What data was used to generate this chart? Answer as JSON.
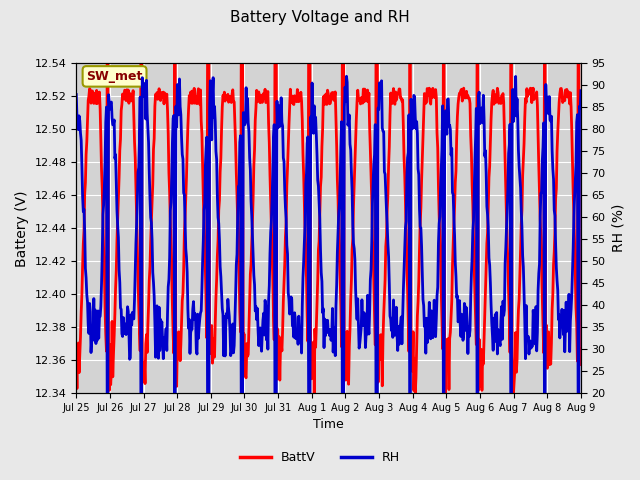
{
  "title": "Battery Voltage and RH",
  "xlabel": "Time",
  "ylabel_left": "Battery (V)",
  "ylabel_right": "RH (%)",
  "left_ylim": [
    12.34,
    12.54
  ],
  "right_ylim": [
    20,
    95
  ],
  "left_yticks": [
    12.34,
    12.36,
    12.38,
    12.4,
    12.42,
    12.44,
    12.46,
    12.48,
    12.5,
    12.52,
    12.54
  ],
  "right_yticks": [
    20,
    25,
    30,
    35,
    40,
    45,
    50,
    55,
    60,
    65,
    70,
    75,
    80,
    85,
    90,
    95
  ],
  "xtick_positions": [
    0,
    1,
    2,
    3,
    4,
    5,
    6,
    7,
    8,
    9,
    10,
    11,
    12,
    13,
    14,
    15
  ],
  "xtick_labels": [
    "Jul 25",
    "Jul 26",
    "Jul 27",
    "Jul 28",
    "Jul 29",
    "Jul 30",
    "Jul 31",
    "Aug 1",
    "Aug 2",
    "Aug 3",
    "Aug 4",
    "Aug 5",
    "Aug 6",
    "Aug 7",
    "Aug 8",
    "Aug 9"
  ],
  "xlim": [
    0,
    15
  ],
  "background_color": "#e8e8e8",
  "plot_bg_color": "#d3d3d3",
  "grid_color": "#ffffff",
  "battv_color": "#ff0000",
  "rh_color": "#0000cc",
  "battv_linewidth": 2.0,
  "rh_linewidth": 2.0,
  "annotation_text": "SW_met",
  "annotation_bg": "#ffffcc",
  "annotation_border": "#999900",
  "annotation_text_color": "#880000",
  "legend_battv": "BattV",
  "legend_rh": "RH",
  "num_days": 15,
  "seed": 42
}
